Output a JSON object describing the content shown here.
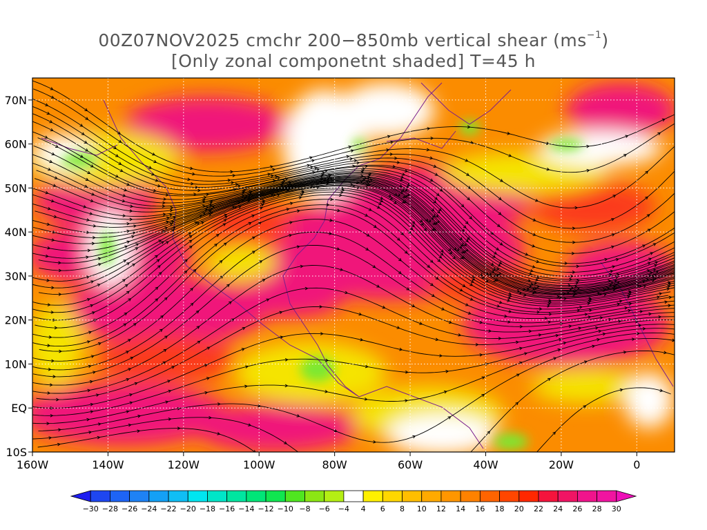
{
  "title": {
    "line1_prefix": "00Z07NOV2025 cmchr 200−850mb vertical shear (ms",
    "line1_exp": "−1",
    "line1_suffix": ")",
    "line2": "[Only zonal componetnt shaded] T=45 h"
  },
  "map": {
    "lon_range": [
      -160,
      10
    ],
    "lat_range": [
      -10,
      75
    ],
    "lat_ticks": [
      {
        "value": 70,
        "label": "70N"
      },
      {
        "value": 60,
        "label": "60N"
      },
      {
        "value": 50,
        "label": "50N"
      },
      {
        "value": 40,
        "label": "40N"
      },
      {
        "value": 30,
        "label": "30N"
      },
      {
        "value": 20,
        "label": "20N"
      },
      {
        "value": 10,
        "label": "10N"
      },
      {
        "value": 0,
        "label": "EQ"
      },
      {
        "value": -10,
        "label": "10S"
      }
    ],
    "lon_ticks": [
      {
        "value": -160,
        "label": "160W"
      },
      {
        "value": -140,
        "label": "140W"
      },
      {
        "value": -120,
        "label": "120W"
      },
      {
        "value": -100,
        "label": "100W"
      },
      {
        "value": -80,
        "label": "80W"
      },
      {
        "value": -60,
        "label": "60W"
      },
      {
        "value": -40,
        "label": "40W"
      },
      {
        "value": -20,
        "label": "20W"
      },
      {
        "value": 0,
        "label": "0"
      }
    ],
    "field_colors": {
      "white": "#ffffff",
      "green": "#7ce830",
      "yellow": "#f5e400",
      "orange": "#fb8c00",
      "red": "#fb3a1e",
      "magenta": "#f0147a",
      "deep_magenta": "#ef0aa0",
      "coast": "#7a1e8c",
      "stream": "#000000"
    }
  },
  "colorbar": {
    "labels": [
      "−30",
      "−28",
      "−26",
      "−24",
      "−22",
      "−20",
      "−18",
      "−16",
      "−14",
      "−12",
      "−10",
      "−8",
      "−6",
      "−4",
      "4",
      "6",
      "8",
      "10",
      "12",
      "14",
      "16",
      "18",
      "20",
      "22",
      "24",
      "26",
      "28",
      "30"
    ],
    "colors": [
      "#1e1ef0",
      "#1e46f0",
      "#1e64f5",
      "#1e82f5",
      "#14a0f5",
      "#10bef5",
      "#00e6f0",
      "#00e6c8",
      "#00e6a0",
      "#00e678",
      "#10e650",
      "#50e620",
      "#8ce614",
      "#b4ee14",
      "#ffffff",
      "#fff000",
      "#ffd700",
      "#ffbe00",
      "#ffaa00",
      "#ff9600",
      "#ff8200",
      "#ff6400",
      "#ff4600",
      "#ff2800",
      "#f5143c",
      "#f01464",
      "#f0148c",
      "#f014a0",
      "#ee10b8"
    ]
  }
}
